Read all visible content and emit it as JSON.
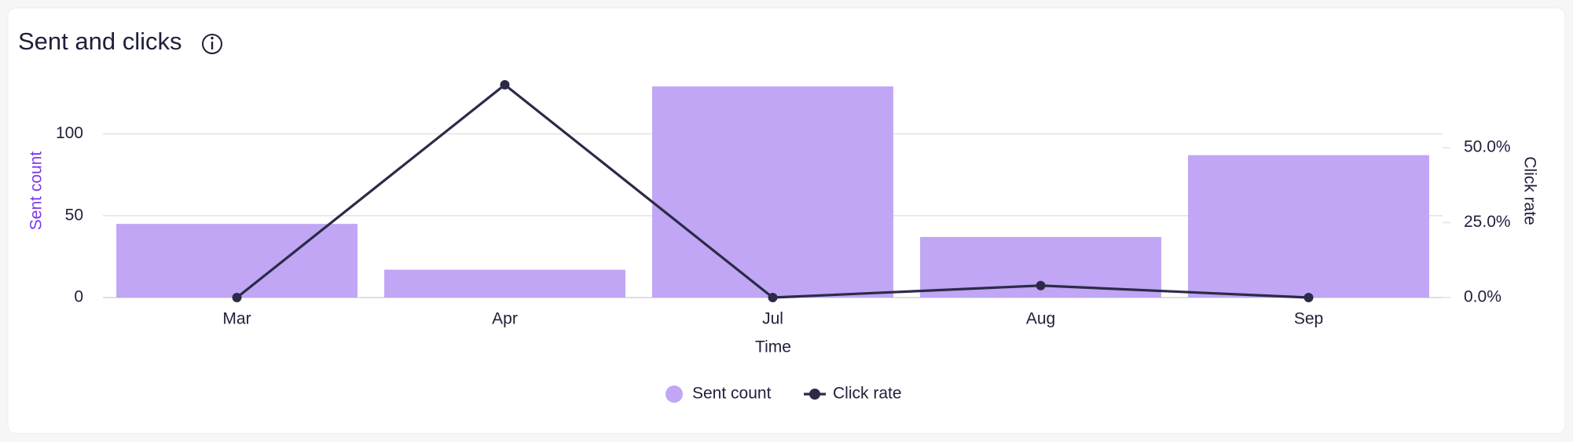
{
  "chart_data": {
    "type": "bar",
    "title": "Sent and clicks",
    "x_label": "Time",
    "y_label": "Sent count",
    "y2_label": "Click rate",
    "categories": [
      "Mar",
      "Apr",
      "Jul",
      "Aug",
      "Sep"
    ],
    "series": [
      {
        "name": "Sent count",
        "type": "bar",
        "color": "#c0a6f4",
        "values": [
          45,
          17,
          129,
          37,
          87
        ]
      },
      {
        "name": "Click rate",
        "type": "line",
        "axis": "y2",
        "color": "#2b2b48",
        "values": [
          0,
          71,
          0,
          4,
          0
        ]
      }
    ],
    "ylim": [
      0,
      130
    ],
    "yticks": [
      0,
      50,
      100
    ],
    "y2lim": [
      0,
      71
    ],
    "y2ticks": [
      {
        "value": 0,
        "label": "0.0%"
      },
      {
        "value": 25,
        "label": "25.0%"
      },
      {
        "value": 50,
        "label": "50.0%"
      }
    ],
    "grid": true
  }
}
